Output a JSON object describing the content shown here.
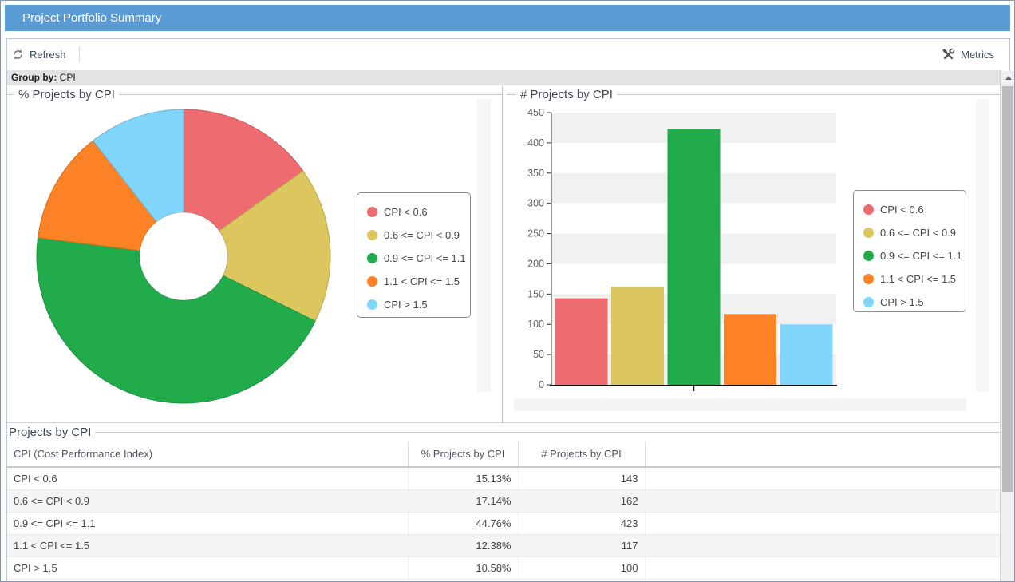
{
  "window": {
    "title": "Project Portfolio Summary"
  },
  "toolbar": {
    "refresh_label": "Refresh",
    "metrics_label": "Metrics"
  },
  "groupbar": {
    "label": "Group by:",
    "value": "CPI"
  },
  "colors": {
    "titlebar_blue": "#5b9bd5",
    "series": [
      "#ee6b70",
      "#dcc75f",
      "#22ab4b",
      "#fd8226",
      "#7fd5fa"
    ],
    "band_gray": "#f1f1f2"
  },
  "legend_items": [
    {
      "label": "CPI < 0.6",
      "color": "#ee6b70"
    },
    {
      "label": "0.6 <= CPI < 0.9",
      "color": "#dcc75f"
    },
    {
      "label": "0.9 <= CPI <= 1.1",
      "color": "#22ab4b"
    },
    {
      "label": "1.1 < CPI <= 1.5",
      "color": "#fd8226"
    },
    {
      "label": "CPI > 1.5",
      "color": "#7fd5fa"
    }
  ],
  "chart_data": [
    {
      "type": "pie",
      "title": "% Projects by CPI",
      "labels": [
        "CPI < 0.6",
        "0.6 <= CPI < 0.9",
        "0.9 <= CPI <= 1.1",
        "1.1 < CPI <= 1.5",
        "CPI > 1.5"
      ],
      "values": [
        15.13,
        17.14,
        44.76,
        12.38,
        10.58
      ],
      "unit": "%",
      "colors": [
        "#ee6b70",
        "#dcc75f",
        "#22ab4b",
        "#fd8226",
        "#7fd5fa"
      ],
      "donut_hole": true,
      "start_angle_deg": 0,
      "direction": "clockwise",
      "legend_position": "right"
    },
    {
      "type": "bar",
      "title": "# Projects by CPI",
      "categories": [
        "CPI < 0.6",
        "0.6 <= CPI < 0.9",
        "0.9 <= CPI <= 1.1",
        "1.1 < CPI <= 1.5",
        "CPI > 1.5"
      ],
      "values": [
        143,
        162,
        423,
        117,
        100
      ],
      "colors": [
        "#ee6b70",
        "#dcc75f",
        "#22ab4b",
        "#fd8226",
        "#7fd5fa"
      ],
      "ylim": [
        0,
        450
      ],
      "ytick_step": 50,
      "yticks": [
        0,
        50,
        100,
        150,
        200,
        250,
        300,
        350,
        400,
        450
      ],
      "grid_bands": true,
      "legend_position": "right"
    }
  ],
  "table": {
    "title": "Projects by CPI",
    "columns": [
      "CPI (Cost Performance Index)",
      "% Projects by CPI",
      "# Projects by CPI"
    ],
    "rows": [
      [
        "CPI < 0.6",
        "15.13%",
        "143"
      ],
      [
        "0.6 <= CPI < 0.9",
        "17.14%",
        "162"
      ],
      [
        "0.9 <= CPI <= 1.1",
        "44.76%",
        "423"
      ],
      [
        "1.1 < CPI <= 1.5",
        "12.38%",
        "117"
      ],
      [
        "CPI > 1.5",
        "10.58%",
        "100"
      ]
    ]
  }
}
